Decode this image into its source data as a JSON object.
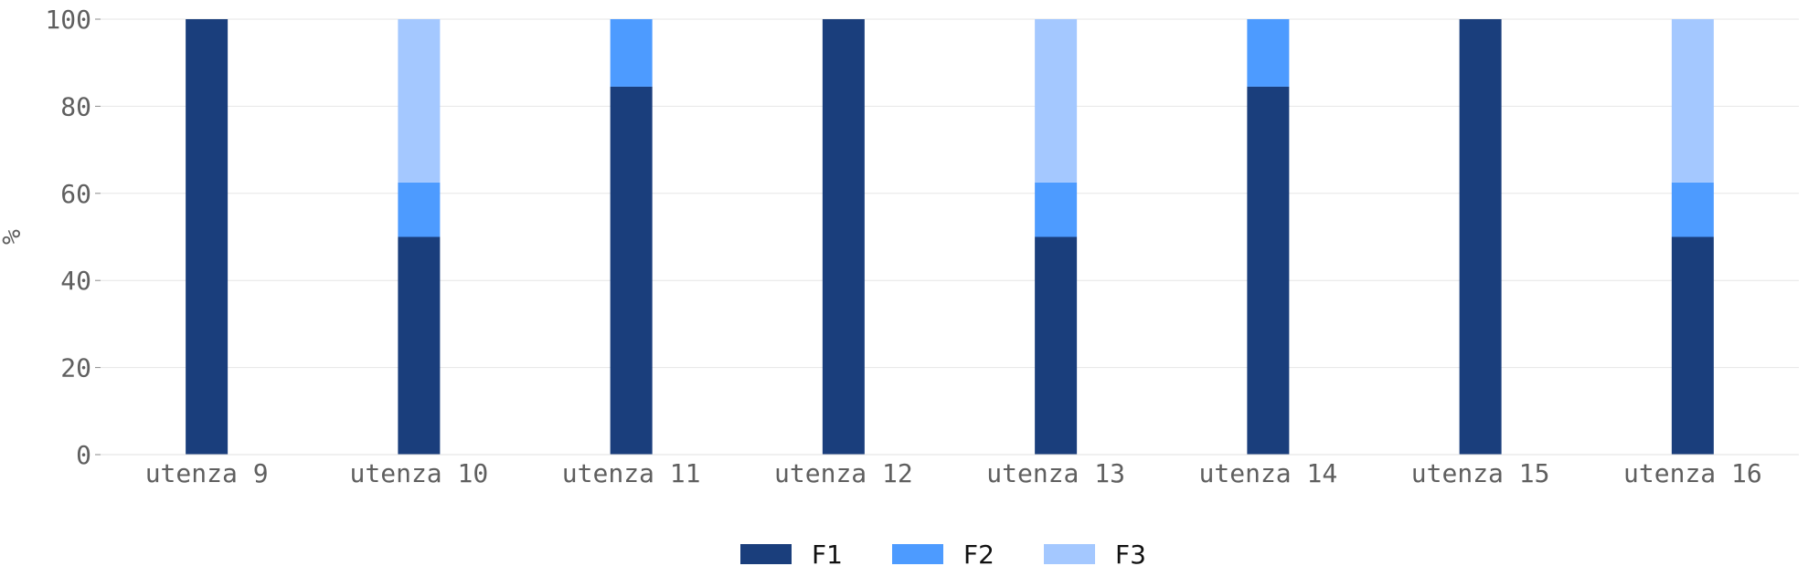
{
  "chart_data": {
    "type": "bar",
    "stacked": true,
    "categories": [
      "utenza 9",
      "utenza 10",
      "utenza 11",
      "utenza 12",
      "utenza 13",
      "utenza 14",
      "utenza 15",
      "utenza 16"
    ],
    "series": [
      {
        "name": "F1",
        "color": "#1a3e7c",
        "values": [
          100,
          50,
          84.5,
          100,
          50,
          84.5,
          100,
          50
        ]
      },
      {
        "name": "F2",
        "color": "#4d9bff",
        "values": [
          0,
          12.5,
          15.5,
          0,
          12.5,
          15.5,
          0,
          12.5
        ]
      },
      {
        "name": "F3",
        "color": "#a4c8ff",
        "values": [
          0,
          37.5,
          0,
          0,
          37.5,
          0,
          0,
          37.5
        ]
      }
    ],
    "ylabel": "%",
    "ylim": [
      0,
      100
    ],
    "yticks": [
      "0",
      "20",
      "40",
      "60",
      "80",
      "100"
    ],
    "grid": true,
    "legend_position": "bottom-center"
  }
}
